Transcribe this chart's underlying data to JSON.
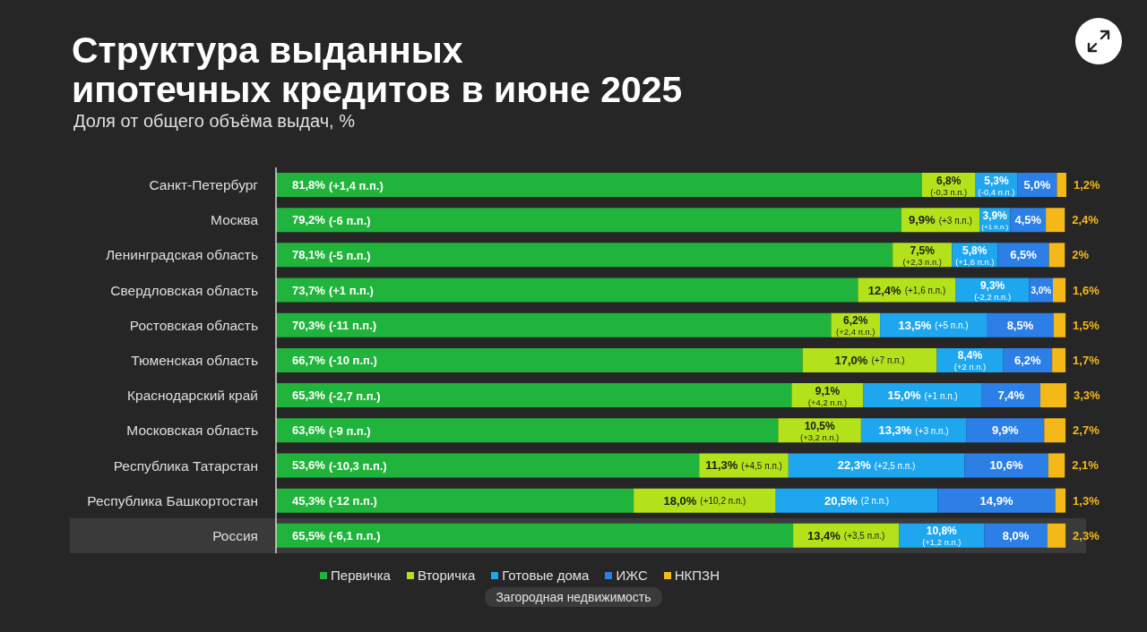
{
  "chart_data": {
    "type": "bar",
    "orientation": "horizontal",
    "stacked": true,
    "title": "Структура выданных\nипотечных кредитов в июне 2025",
    "subtitle": "Доля от общего объёма выдач, %",
    "categories": [
      "Санкт-Петербург",
      "Москва",
      "Ленинградская область",
      "Свердловская область",
      "Ростовская область",
      "Тюменская область",
      "Краснодарский край",
      "Московская область",
      "Республика Татарстан",
      "Республика Башкортостан",
      "Россия"
    ],
    "series": [
      {
        "name": "Первичка",
        "color": "#21b43c",
        "values": [
          81.8,
          79.2,
          78.1,
          73.7,
          70.3,
          66.7,
          65.3,
          63.6,
          53.6,
          45.3,
          65.5
        ],
        "value_labels": [
          "81,8% (+1,4 п.п.)",
          "79,2% (-6 п.п.)",
          "78,1% (-5 п.п.)",
          "73,7% (+1 п.п.)",
          "70,3% (-11 п.п.)",
          "66,7% (-10 п.п.)",
          "65,3% (-2,7 п.п.)",
          "63,6% (-9 п.п.)",
          "53,6% (-10,3 п.п.)",
          "45,3% (-12 п.п.)",
          "65,5% (-6,1 п.п.)"
        ]
      },
      {
        "name": "Вторичка",
        "color": "#b4e21a",
        "values": [
          6.8,
          9.9,
          7.5,
          12.4,
          6.2,
          17.0,
          9.1,
          10.5,
          11.3,
          18.0,
          13.4
        ],
        "value_labels": [
          "6,8% (-0,3 п.п.)",
          "9,9% (+3 п.п.)",
          "7,5% (+2,3 п.п.)",
          "12,4% (+1,6 п.п.)",
          "6,2% (+2,4 п.п.)",
          "17,0% (+7 п.п.)",
          "9,1% (+4,2 п.п.)",
          "10,5% (+3,2 п.п.)",
          "11,3% (+4,5 п.п.)",
          "18,0% (+10,2 п.п.)",
          "13,4% (+3,5 п.п.)"
        ]
      },
      {
        "name": "Готовые дома",
        "color": "#1ea6ee",
        "values": [
          5.3,
          3.9,
          5.8,
          9.3,
          13.5,
          8.4,
          15.0,
          13.3,
          22.3,
          20.5,
          10.8
        ],
        "value_labels": [
          "5,3% (-0,4 п.п.)",
          "3,9% (+1 п.п.)",
          "5,8% (+1,6 п.п.)",
          "9,3% (-2,2 п.п.)",
          "13,5% (+5 п.п.)",
          "8,4% (+2 п.п.)",
          "15,0% (+1 п.п.)",
          "13,3% (+3 п.п.)",
          "22,3% (+2,5 п.п.)",
          "20,5% (2 п.п.)",
          "10,8% (+1,2 п.п.)"
        ]
      },
      {
        "name": "ИЖС",
        "color": "#2b7fe6",
        "values": [
          5.0,
          4.5,
          6.5,
          3.0,
          8.5,
          6.2,
          7.4,
          9.9,
          10.6,
          14.9,
          8.0
        ],
        "value_labels": [
          "5,0%",
          "4,5%",
          "6,5%",
          "3,0%",
          "8,5%",
          "6,2%",
          "7,4%",
          "9,9%",
          "10,6%",
          "14,9%",
          "8,0%"
        ]
      },
      {
        "name": "НКПЗН",
        "color": "#f5b819",
        "values": [
          1.2,
          2.4,
          2,
          1.6,
          1.5,
          1.7,
          3.3,
          2.7,
          2.1,
          1.3,
          2.3
        ],
        "value_labels": [
          "1,2%",
          "2,4%",
          "2%",
          "1,6%",
          "1,5%",
          "1,7%",
          "3,3%",
          "2,7%",
          "2,1%",
          "1,3%",
          "2,3%"
        ]
      }
    ],
    "bands": [
      {
        "axis": "y",
        "from": "Россия",
        "to": "Россия",
        "color": "#3a3a3a"
      }
    ],
    "legend": "bottom",
    "tick_labels": "y",
    "annotations": [
      "Загородная недвижимость"
    ]
  }
}
